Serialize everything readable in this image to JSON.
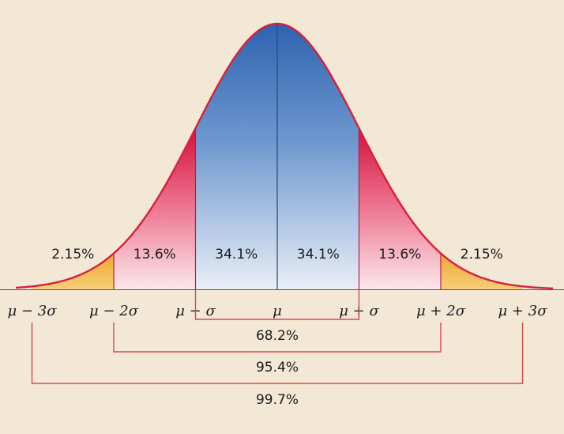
{
  "chart_data": {
    "type": "area",
    "title": "",
    "xlabel": "",
    "ylabel": "",
    "xlim": [
      -3.5,
      3.5
    ],
    "x_ticks": [
      {
        "sigma": -3,
        "label": "μ − 3σ"
      },
      {
        "sigma": -2,
        "label": "μ − 2σ"
      },
      {
        "sigma": -1,
        "label": "μ − σ"
      },
      {
        "sigma": 0,
        "label": "μ"
      },
      {
        "sigma": 1,
        "label": "μ + σ"
      },
      {
        "sigma": 2,
        "label": "μ + 2σ"
      },
      {
        "sigma": 3,
        "label": "μ + 3σ"
      }
    ],
    "regions": [
      {
        "from": -3,
        "to": -2,
        "value": 2.15,
        "label": "2.15%",
        "color": "#f3b23a"
      },
      {
        "from": -2,
        "to": -1,
        "value": 13.6,
        "label": "13.6%",
        "color": "#e11a3c"
      },
      {
        "from": -1,
        "to": 0,
        "value": 34.1,
        "label": "34.1%",
        "color": "#3a6fb4"
      },
      {
        "from": 0,
        "to": 1,
        "value": 34.1,
        "label": "34.1%",
        "color": "#3a6fb4"
      },
      {
        "from": 1,
        "to": 2,
        "value": 13.6,
        "label": "13.6%",
        "color": "#e11a3c"
      },
      {
        "from": 2,
        "to": 3,
        "value": 2.15,
        "label": "2.15%",
        "color": "#f3b23a"
      }
    ],
    "ranges": [
      {
        "from": -1,
        "to": 1,
        "value": 68.2,
        "label": "68.2%"
      },
      {
        "from": -2,
        "to": 2,
        "value": 95.4,
        "label": "95.4%"
      },
      {
        "from": -3,
        "to": 3,
        "value": 99.7,
        "label": "99.7%"
      }
    ],
    "colors": {
      "curve": "#d8203a",
      "tail": "#f3b23a",
      "side": "#e11a3c",
      "center": "#3a6fb4",
      "bracket": "#d84a4a",
      "background": "#f3e8d6"
    }
  }
}
